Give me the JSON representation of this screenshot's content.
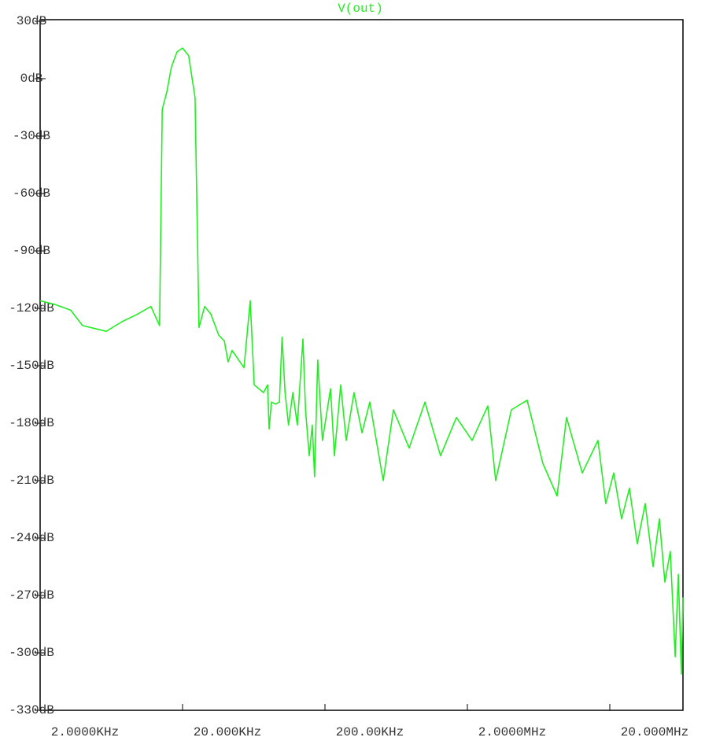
{
  "chart_data": {
    "type": "line",
    "title": "V(out)",
    "log_x": true,
    "grid": false,
    "xlim": [
      2000,
      65300000
    ],
    "xticks": [
      {
        "value": 2000,
        "label": "2.0000KHz"
      },
      {
        "value": 20000,
        "label": "20.000KHz"
      },
      {
        "value": 200000,
        "label": "200.00KHz"
      },
      {
        "value": 2000000,
        "label": "2.0000MHz"
      },
      {
        "value": 20000000,
        "label": "20.000MHz"
      }
    ],
    "ylim": [
      -330,
      30
    ],
    "yticks": [
      {
        "value": 30,
        "label": "30dB"
      },
      {
        "value": 0,
        "label": "0dB"
      },
      {
        "value": -30,
        "label": "-30dB"
      },
      {
        "value": -60,
        "label": "-60dB"
      },
      {
        "value": -90,
        "label": "-90dB"
      },
      {
        "value": -120,
        "label": "-120dB"
      },
      {
        "value": -150,
        "label": "-150dB"
      },
      {
        "value": -180,
        "label": "-180dB"
      },
      {
        "value": -210,
        "label": "-210dB"
      },
      {
        "value": -240,
        "label": "-240dB"
      },
      {
        "value": -270,
        "label": "-270dB"
      },
      {
        "value": -300,
        "label": "-300dB"
      },
      {
        "value": -330,
        "label": "-330dB"
      }
    ],
    "x": [
      2000,
      2550,
      3280,
      3970,
      5820,
      7510,
      9680,
      12000,
      13800,
      14400,
      15500,
      16700,
      18300,
      20000,
      22100,
      24500,
      26100,
      28600,
      31600,
      35900,
      39300,
      41800,
      44600,
      50600,
      54000,
      59700,
      63700,
      74100,
      79100,
      81100,
      84200,
      89800,
      95700,
      100000,
      105000,
      111000,
      119000,
      128000,
      140000,
      146000,
      155000,
      163000,
      169000,
      178000,
      192000,
      219000,
      233000,
      258000,
      282000,
      320000,
      364000,
      413000,
      513000,
      605000,
      780000,
      1007000,
      1297000,
      1675000,
      2158000,
      2786000,
      3162000,
      4074000,
      5260000,
      6776000,
      8532000,
      9932000,
      12820000,
      16520000,
      18750000,
      21320000,
      24220000,
      27480000,
      31200000,
      35480000,
      40280000,
      44560000,
      48760000,
      53220000,
      57540000,
      60540000,
      63680000,
      65300000
    ],
    "series": [
      {
        "name": "V(out)",
        "color": "#22ee22",
        "values": [
          -116,
          -118,
          -121,
          -129,
          -132,
          -127,
          -123,
          -119,
          -129,
          -16,
          -7,
          6,
          14,
          16,
          12,
          -10,
          -130,
          -119,
          -123,
          -134,
          -137,
          -148,
          -142,
          -148,
          -151,
          -116,
          -160,
          -164,
          -160,
          -183,
          -169,
          -170,
          -169,
          -135,
          -164,
          -181,
          -164,
          -181,
          -136,
          -173,
          -197,
          -181,
          -208,
          -147,
          -189,
          -162,
          -197,
          -160,
          -189,
          -164,
          -185,
          -169,
          -210,
          -173,
          -193,
          -169,
          -197,
          -177,
          -189,
          -171,
          -210,
          -173,
          -168,
          -201,
          -218,
          -177,
          -206,
          -189,
          -222,
          -206,
          -230,
          -214,
          -243,
          -222,
          -255,
          -230,
          -263,
          -247,
          -302,
          -259,
          -311,
          -271
        ]
      }
    ]
  }
}
